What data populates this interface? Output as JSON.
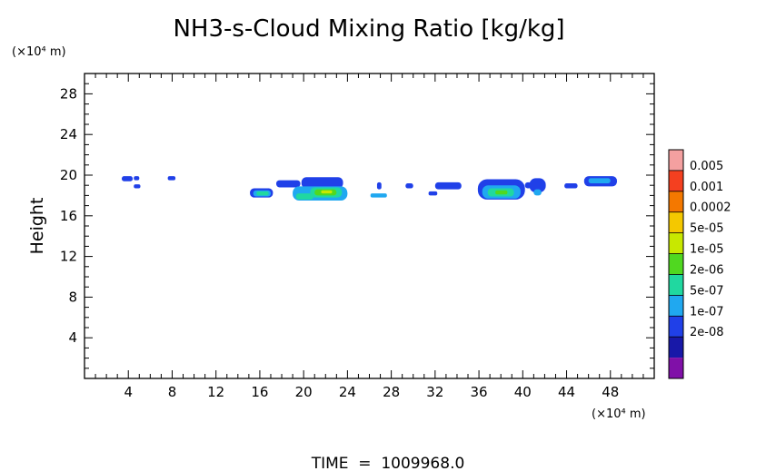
{
  "chart_data": {
    "type": "heatmap",
    "title": "NH3-s-Cloud Mixing Ratio [kg/kg]",
    "ylabel": "Height",
    "x_unit_label": "(×10⁴ m)",
    "y_unit_label": "(×10⁴ m)",
    "footer": "TIME  =  1009968.0",
    "xlim": [
      0,
      52
    ],
    "ylim": [
      0,
      30
    ],
    "x_ticks": [
      4,
      8,
      12,
      16,
      20,
      24,
      28,
      32,
      36,
      40,
      44,
      48
    ],
    "y_ticks": [
      4,
      8,
      12,
      16,
      20,
      24,
      28
    ],
    "colorbar": {
      "levels": [
        "0.005",
        "0.001",
        "0.0002",
        "5e-05",
        "1e-05",
        "2e-06",
        "5e-07",
        "1e-07",
        "2e-08"
      ],
      "colors": [
        "#f4a0a0",
        "#f44020",
        "#f47800",
        "#f4c800",
        "#c8e800",
        "#50d820",
        "#20d8a0",
        "#20a8f0",
        "#2040e8",
        "#1818a8",
        "#8010a8"
      ]
    },
    "cloud_patches": [
      {
        "x0": 3.4,
        "x1": 4.4,
        "y0": 19.4,
        "y1": 19.9,
        "level": "1e-07"
      },
      {
        "x0": 4.5,
        "x1": 5.0,
        "y0": 19.5,
        "y1": 19.9,
        "level": "1e-07"
      },
      {
        "x0": 4.5,
        "x1": 5.1,
        "y0": 18.7,
        "y1": 19.1,
        "level": "1e-07"
      },
      {
        "x0": 7.6,
        "x1": 8.3,
        "y0": 19.5,
        "y1": 19.9,
        "level": "1e-07"
      },
      {
        "x0": 15.1,
        "x1": 17.2,
        "y0": 17.8,
        "y1": 18.7,
        "level": "1e-07"
      },
      {
        "x0": 15.4,
        "x1": 17.0,
        "y0": 17.9,
        "y1": 18.5,
        "level": "5e-07"
      },
      {
        "x0": 15.7,
        "x1": 16.8,
        "y0": 18.0,
        "y1": 18.4,
        "level": "2e-06"
      },
      {
        "x0": 17.5,
        "x1": 19.7,
        "y0": 18.8,
        "y1": 19.5,
        "level": "1e-07"
      },
      {
        "x0": 19.8,
        "x1": 23.6,
        "y0": 18.7,
        "y1": 19.8,
        "level": "1e-07"
      },
      {
        "x0": 19.0,
        "x1": 24.0,
        "y0": 17.5,
        "y1": 18.9,
        "level": "5e-07"
      },
      {
        "x0": 19.3,
        "x1": 20.9,
        "y0": 17.6,
        "y1": 18.2,
        "level": "2e-06"
      },
      {
        "x0": 20.6,
        "x1": 23.5,
        "y0": 17.8,
        "y1": 18.8,
        "level": "2e-06"
      },
      {
        "x0": 21.0,
        "x1": 23.0,
        "y0": 18.0,
        "y1": 18.6,
        "level": "1e-05"
      },
      {
        "x0": 21.6,
        "x1": 22.6,
        "y0": 18.2,
        "y1": 18.5,
        "level": "5e-05"
      },
      {
        "x0": 26.1,
        "x1": 27.6,
        "y0": 17.8,
        "y1": 18.2,
        "level": "5e-07"
      },
      {
        "x0": 26.7,
        "x1": 27.1,
        "y0": 18.6,
        "y1": 19.3,
        "level": "1e-07"
      },
      {
        "x0": 29.3,
        "x1": 30.0,
        "y0": 18.7,
        "y1": 19.2,
        "level": "1e-07"
      },
      {
        "x0": 31.4,
        "x1": 32.2,
        "y0": 18.0,
        "y1": 18.4,
        "level": "1e-07"
      },
      {
        "x0": 32.0,
        "x1": 34.4,
        "y0": 18.6,
        "y1": 19.3,
        "level": "1e-07"
      },
      {
        "x0": 35.9,
        "x1": 40.2,
        "y0": 17.6,
        "y1": 19.6,
        "level": "1e-07"
      },
      {
        "x0": 36.3,
        "x1": 39.8,
        "y0": 17.7,
        "y1": 19.0,
        "level": "5e-07"
      },
      {
        "x0": 36.8,
        "x1": 39.2,
        "y0": 17.9,
        "y1": 18.7,
        "level": "2e-06"
      },
      {
        "x0": 37.5,
        "x1": 38.6,
        "y0": 18.1,
        "y1": 18.5,
        "level": "1e-05"
      },
      {
        "x0": 40.2,
        "x1": 40.8,
        "y0": 18.7,
        "y1": 19.3,
        "level": "1e-07"
      },
      {
        "x0": 40.6,
        "x1": 42.1,
        "y0": 18.3,
        "y1": 19.7,
        "level": "1e-07"
      },
      {
        "x0": 41.0,
        "x1": 41.7,
        "y0": 18.0,
        "y1": 18.6,
        "level": "5e-07"
      },
      {
        "x0": 43.8,
        "x1": 45.0,
        "y0": 18.7,
        "y1": 19.2,
        "level": "1e-07"
      },
      {
        "x0": 45.6,
        "x1": 48.6,
        "y0": 18.9,
        "y1": 19.9,
        "level": "1e-07"
      },
      {
        "x0": 46.0,
        "x1": 48.0,
        "y0": 19.2,
        "y1": 19.7,
        "level": "5e-07"
      }
    ]
  }
}
